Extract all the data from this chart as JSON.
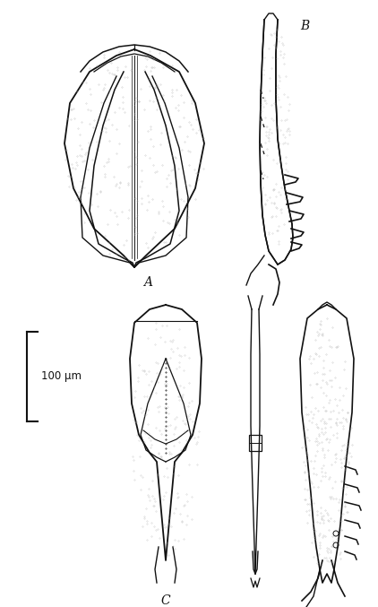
{
  "background_color": "#ffffff",
  "label_A": "A",
  "label_B": "B",
  "label_C": "C",
  "scale_text": "100 μm",
  "figure_width": 4.22,
  "figure_height": 6.77,
  "dpi": 100,
  "line_color": "#111111",
  "fill_color": "#e8e8e8",
  "light_fill": "#efefef",
  "stipple_color": "#888888"
}
